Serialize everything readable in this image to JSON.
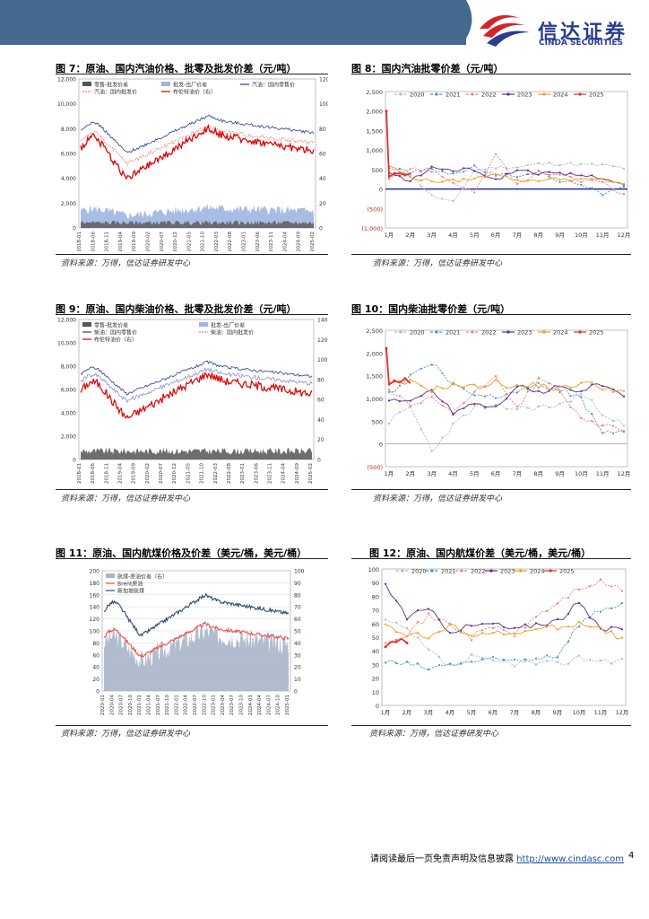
{
  "header": {
    "logo_cn": "信达证券",
    "logo_en": "CINDA SECURITIES"
  },
  "source_text": "资料来源：万得，信达证券研发中心",
  "footer": {
    "text": "请阅读最后一页免责声明及信息披露 ",
    "url": "http://www.cindasc.com",
    "page": "4"
  },
  "colors": {
    "header_blue": "#45688f",
    "brand_red": "#d6232a",
    "brand_blue": "#2a3d8f"
  },
  "figures": {
    "fig7": {
      "title": "图 7：原油、国内汽油价格、批零及批发价差（元/吨）",
      "chart_data": {
        "type": "area",
        "legend": [
          "零售-批发价差",
          "批发-出厂价差",
          "汽油：国内零售价",
          "汽油：国内批发价",
          "布伦特油价（右）"
        ],
        "y_left": [
          0,
          2000,
          4000,
          6000,
          8000,
          10000,
          12000
        ],
        "y_left_labels": [
          "0",
          "2,000",
          "4,000",
          "6,000",
          "8,000",
          "10,000",
          "12,000"
        ],
        "y_right": [
          0,
          20,
          40,
          60,
          80,
          100,
          120
        ],
        "x_labels": [
          "2018-01",
          "2018-06",
          "2018-11",
          "2019-04",
          "2019-09",
          "2020-02",
          "2020-07",
          "2020-12",
          "2021-05",
          "2021-10",
          "2022-03",
          "2022-08",
          "2023-01",
          "2023-06",
          "2023-11",
          "2024-04",
          "2024-09",
          "2025-02"
        ]
      }
    },
    "fig8": {
      "title": "图 8：国内汽油批零价差（元/吨）",
      "chart_data": {
        "type": "line",
        "y_labels": [
          "2,500",
          "2,000",
          "1,500",
          "1,000",
          "500",
          "0",
          "(500)",
          "(1,000)"
        ],
        "y_values": [
          2500,
          2000,
          1500,
          1000,
          500,
          0,
          -500,
          -1000
        ],
        "x_labels": [
          "1月",
          "2月",
          "3月",
          "4月",
          "5月",
          "6月",
          "7月",
          "8月",
          "9月",
          "10月",
          "11月",
          "12月"
        ],
        "series": [
          {
            "name": "2020",
            "color": "#b0b8c8",
            "values": [
              330,
              380,
              -180,
              -350,
              480,
              560,
              560,
              640,
              650,
              620,
              610,
              540
            ]
          },
          {
            "name": "2021",
            "color": "#4a90c0",
            "values": [
              560,
              420,
              520,
              380,
              560,
              350,
              350,
              440,
              190,
              150,
              -160,
              100
            ]
          },
          {
            "name": "2022",
            "color": "#f08080",
            "values": [
              300,
              520,
              470,
              160,
              -90,
              880,
              110,
              420,
              350,
              200,
              200,
              -160
            ]
          },
          {
            "name": "2023",
            "color": "#5b2d8e",
            "values": [
              400,
              200,
              550,
              480,
              500,
              220,
              500,
              410,
              380,
              350,
              300,
              100
            ]
          },
          {
            "name": "2024",
            "color": "#f0a020",
            "values": [
              600,
              300,
              200,
              200,
              260,
              420,
              200,
              230,
              260,
              240,
              230,
              140
            ]
          },
          {
            "name": "2025",
            "color": "#e03030",
            "values": [
              350,
              380
            ]
          }
        ]
      }
    },
    "fig9": {
      "title": "图 9：原油、国内柴油价格、批零及批发价差（元/吨）",
      "chart_data": {
        "type": "area",
        "legend": [
          "零售-批发价差",
          "批发-出厂价差",
          "柴油：国内零售价",
          "柴油：国内批发价",
          "布伦特油价（右）"
        ],
        "y_left_labels": [
          "0",
          "2,000",
          "4,000",
          "6,000",
          "8,000",
          "10,000",
          "12,000"
        ],
        "y_right": [
          0,
          20,
          40,
          60,
          80,
          100,
          120,
          140
        ],
        "x_labels": [
          "2018-01",
          "2018-06",
          "2018-11",
          "2019-04",
          "2019-09",
          "2020-02",
          "2020-07",
          "2020-12",
          "2021-05",
          "2021-10",
          "2022-03",
          "2022-08",
          "2023-01",
          "2023-06",
          "2023-11",
          "2024-04",
          "2024-09",
          "2025-02"
        ]
      }
    },
    "fig10": {
      "title": "图 10：国内柴油批零价差（元/吨）",
      "chart_data": {
        "type": "line",
        "y_labels": [
          "2,500",
          "2,000",
          "1,500",
          "1,000",
          "500",
          "0",
          "(500)"
        ],
        "y_values": [
          2500,
          2000,
          1500,
          1000,
          500,
          0,
          -500
        ],
        "x_labels": [
          "1月",
          "2月",
          "3月",
          "4月",
          "5月",
          "6月",
          "7月",
          "8月",
          "9月",
          "10月",
          "11月",
          "12月"
        ],
        "series": [
          {
            "name": "2020",
            "color": "#b0b8c8",
            "values": [
              500,
              800,
              -150,
              400,
              800,
              800,
              780,
              800,
              850,
              1100,
              700,
              400
            ]
          },
          {
            "name": "2021",
            "color": "#4a90c0",
            "values": [
              1100,
              1500,
              1800,
              1300,
              1100,
              1050,
              1200,
              1300,
              1200,
              1000,
              200,
              300
            ]
          },
          {
            "name": "2022",
            "color": "#f08080",
            "values": [
              1200,
              800,
              1000,
              700,
              1100,
              1500,
              800,
              1400,
              1200,
              500,
              400,
              350
            ]
          },
          {
            "name": "2023",
            "color": "#5b2d8e",
            "values": [
              1000,
              900,
              1200,
              700,
              900,
              800,
              1300,
              1100,
              1250,
              1200,
              1300,
              1000
            ]
          },
          {
            "name": "2024",
            "color": "#f0a020",
            "values": [
              1300,
              1350,
              1200,
              1300,
              1250,
              1350,
              1250,
              1300,
              1200,
              1350,
              1250,
              1150
            ]
          },
          {
            "name": "2025",
            "color": "#e03030",
            "values": [
              1300,
              1400
            ]
          }
        ]
      }
    },
    "fig11": {
      "title": "图 11：原油、国内航煤价格及价差（美元/桶，美元/桶）",
      "chart_data": {
        "type": "area",
        "legend": [
          "航煤-原油价差（右）",
          "Brent原油",
          "新加坡航煤"
        ],
        "y_left": [
          0,
          20,
          40,
          60,
          80,
          100,
          120,
          140,
          160,
          180,
          200
        ],
        "y_right": [
          0,
          10,
          20,
          30,
          40,
          50,
          60,
          70,
          80,
          90,
          100
        ],
        "x_labels": [
          "2020-01",
          "2020-04",
          "2020-07",
          "2020-10",
          "2021-01",
          "2021-04",
          "2021-07",
          "2021-10",
          "2022-01",
          "2022-04",
          "2022-07",
          "2022-10",
          "2023-01",
          "2023-04",
          "2023-07",
          "2023-10",
          "2024-01",
          "2024-04",
          "2024-07",
          "2024-10",
          "2025-01"
        ]
      }
    },
    "fig12": {
      "title": "图 12：原油、国内航煤价差（美元/桶，美元/桶）",
      "chart_data": {
        "type": "line",
        "y_values": [
          0,
          10,
          20,
          30,
          40,
          50,
          60,
          70,
          80,
          90,
          100
        ],
        "x_labels": [
          "1月",
          "2月",
          "3月",
          "4月",
          "5月",
          "6月",
          "7月",
          "8月",
          "9月",
          "10月",
          "11月",
          "12月"
        ],
        "series": [
          {
            "name": "2020",
            "color": "#b0b8c8",
            "values": [
              62,
              55,
              40,
              28,
              35,
              32,
              31,
              31,
              30,
              35,
              33,
              33
            ]
          },
          {
            "name": "2021",
            "color": "#4a90c0",
            "values": [
              32,
              30,
              27,
              30,
              32,
              33,
              33,
              35,
              37,
              60,
              70,
              75
            ]
          },
          {
            "name": "2022",
            "color": "#f08080",
            "values": [
              48,
              53,
              65,
              60,
              50,
              58,
              52,
              65,
              75,
              86,
              90,
              85
            ]
          },
          {
            "name": "2023",
            "color": "#5b2d8e",
            "values": [
              88,
              65,
              70,
              55,
              58,
              60,
              55,
              60,
              62,
              75,
              55,
              58
            ]
          },
          {
            "name": "2024",
            "color": "#f0a020",
            "values": [
              60,
              52,
              50,
              58,
              53,
              52,
              53,
              55,
              58,
              60,
              57,
              48
            ]
          },
          {
            "name": "2025",
            "color": "#e03030",
            "values": [
              45,
              47
            ]
          }
        ]
      }
    }
  }
}
